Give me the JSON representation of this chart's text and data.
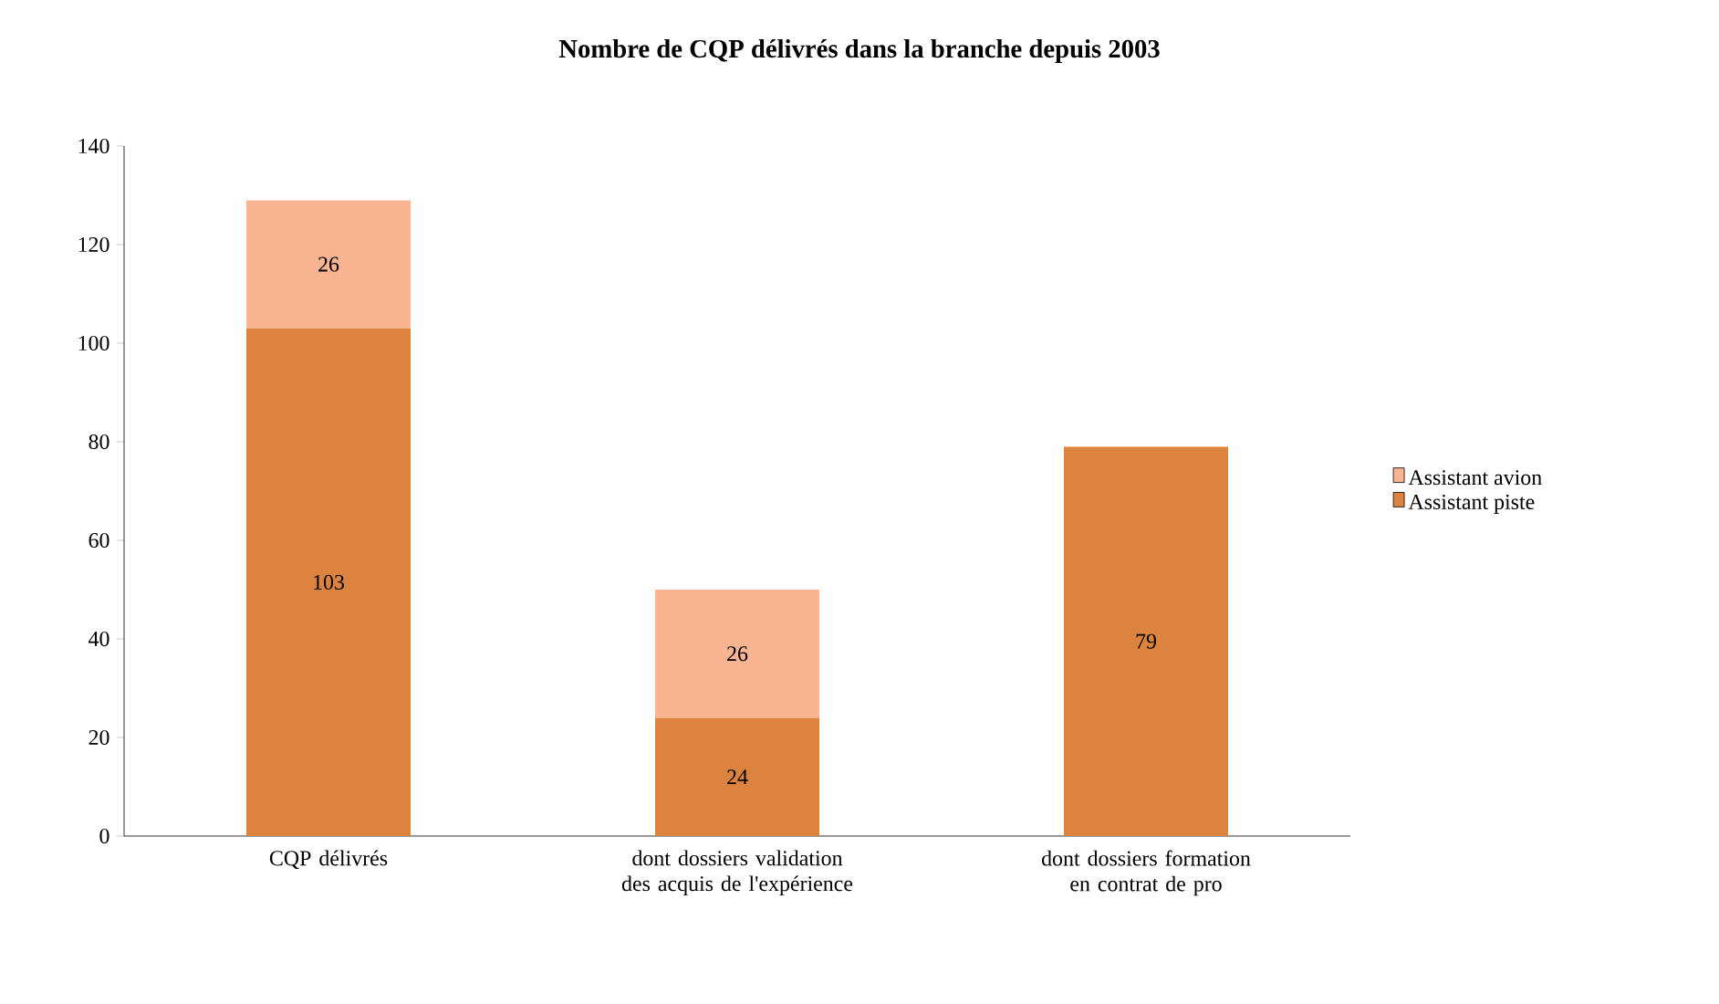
{
  "chart_data": {
    "type": "bar",
    "title": "Nombre de CQP délivrés dans la branche depuis 2003",
    "categories": [
      "CQP délivrés",
      "dont dossiers validation des acquis de l'expérience",
      "dont dossiers formation en contrat de pro"
    ],
    "series": [
      {
        "name": "Assistant piste",
        "color": "#dc843f",
        "values": [
          103,
          24,
          79
        ]
      },
      {
        "name": "Assistant avion",
        "color": "#f9b592",
        "values": [
          26,
          26,
          null
        ]
      }
    ],
    "stacked": true,
    "ylim": [
      0,
      140
    ],
    "yticks": [
      0,
      20,
      40,
      60,
      80,
      100,
      120,
      140
    ],
    "grid": false,
    "legend": "right",
    "data_labels": true
  }
}
